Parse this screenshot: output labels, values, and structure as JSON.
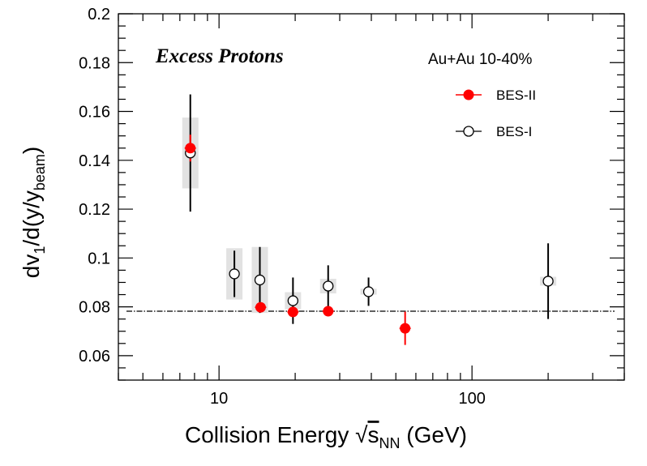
{
  "chart_data": {
    "type": "scatter",
    "title": "Excess Protons",
    "annotation": "Au+Au 10-40%",
    "xlabel": {
      "main": "Collision Energy ",
      "sub": "NN",
      "unit": " (GeV)"
    },
    "ylabel": {
      "main": "dv",
      "sub1": "1",
      "mid": "/d(y/y",
      "sub2": "beam",
      "end": ")"
    },
    "x_scale": "log",
    "xlim": [
      4,
      400
    ],
    "ylim": [
      0.05,
      0.2
    ],
    "x_tick_labels": [
      "10",
      "100"
    ],
    "y_ticks": [
      0.06,
      0.08,
      0.1,
      0.12,
      0.14,
      0.16,
      0.18,
      0.2
    ],
    "y_tick_labels": [
      "0.06",
      "0.08",
      "0.1",
      "0.12",
      "0.14",
      "0.16",
      "0.18",
      "0.2"
    ],
    "grid": false,
    "legend_position": "top-right",
    "reference_line": {
      "y": 0.0782,
      "style": "dash-dot",
      "color": "#000000"
    },
    "series": [
      {
        "name": "BES-II",
        "marker": "filled-circle",
        "color": "#ff0000",
        "points": [
          {
            "x": 7.7,
            "y": 0.145,
            "err": 0.0055,
            "sys": 0.0
          },
          {
            "x": 14.6,
            "y": 0.0798,
            "err": 0.001,
            "sys": 0.0
          },
          {
            "x": 19.6,
            "y": 0.0779,
            "err": 0.001,
            "sys": 0.0
          },
          {
            "x": 27,
            "y": 0.0782,
            "err": 0.0008,
            "sys": 0.0
          },
          {
            "x": 54.4,
            "y": 0.0712,
            "err": 0.0068,
            "sys": 0.0
          }
        ]
      },
      {
        "name": "BES-I",
        "marker": "open-circle",
        "color": "#000000",
        "points": [
          {
            "x": 7.7,
            "y": 0.143,
            "err": 0.024,
            "sys": 0.0145
          },
          {
            "x": 11.5,
            "y": 0.0935,
            "err": 0.0095,
            "sys": 0.0105
          },
          {
            "x": 14.5,
            "y": 0.091,
            "err": 0.0135,
            "sys": 0.0135
          },
          {
            "x": 19.6,
            "y": 0.0825,
            "err": 0.0095,
            "sys": 0.0035
          },
          {
            "x": 27,
            "y": 0.0885,
            "err": 0.0085,
            "sys": 0.003
          },
          {
            "x": 39,
            "y": 0.0862,
            "err": 0.0058,
            "sys": 0.0012
          },
          {
            "x": 200,
            "y": 0.0905,
            "err": 0.0155,
            "sys": 0.0018
          }
        ]
      }
    ],
    "systematic_box_color": "#e2e2e2"
  }
}
